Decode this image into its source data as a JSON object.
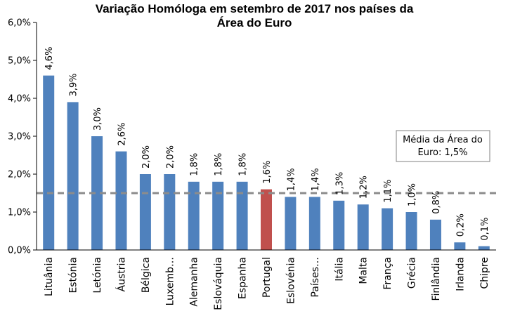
{
  "chart_data": {
    "type": "bar",
    "title_line1": "Variação Homóloga em setembro de 2017 nos países da",
    "title_line2": "Área do Euro",
    "categories": [
      "Lituânia",
      "Estónia",
      "Letónia",
      "Áustria",
      "Bélgica",
      "Luxemb…",
      "Alemanha",
      "Eslováquia",
      "Espanha",
      "Portugal",
      "Eslovénia",
      "Países…",
      "Itália",
      "Malta",
      "França",
      "Grécia",
      "Finlândia",
      "Irlanda",
      "Chipre"
    ],
    "values": [
      4.6,
      3.9,
      3.0,
      2.6,
      2.0,
      2.0,
      1.8,
      1.8,
      1.8,
      1.6,
      1.4,
      1.4,
      1.3,
      1.2,
      1.1,
      1.0,
      0.8,
      0.2,
      0.1
    ],
    "value_labels": [
      "4,6%",
      "3,9%",
      "3,0%",
      "2,6%",
      "2,0%",
      "2,0%",
      "1,8%",
      "1,8%",
      "1,8%",
      "1,6%",
      "1,4%",
      "1,4%",
      "1,3%",
      "1,2%",
      "1,1%",
      "1,0%",
      "0,8%",
      "0,2%",
      "0,1%"
    ],
    "highlight_category": "Portugal",
    "ylim": [
      0,
      6
    ],
    "yticks": [
      0,
      1,
      2,
      3,
      4,
      5,
      6
    ],
    "ytick_labels": [
      "0,0%",
      "1,0%",
      "2,0%",
      "3,0%",
      "4,0%",
      "5,0%",
      "6,0%"
    ],
    "reference_line": {
      "value": 1.5,
      "label_line1": "Média da Área do",
      "label_line2": "Euro: 1,5%"
    },
    "legend": "none",
    "grid": false,
    "xlabel": "",
    "ylabel": ""
  },
  "colors": {
    "bar": "#4f81bd",
    "highlight": "#c0504d",
    "reference_line": "#8c8c8c",
    "axis": "#000000"
  }
}
